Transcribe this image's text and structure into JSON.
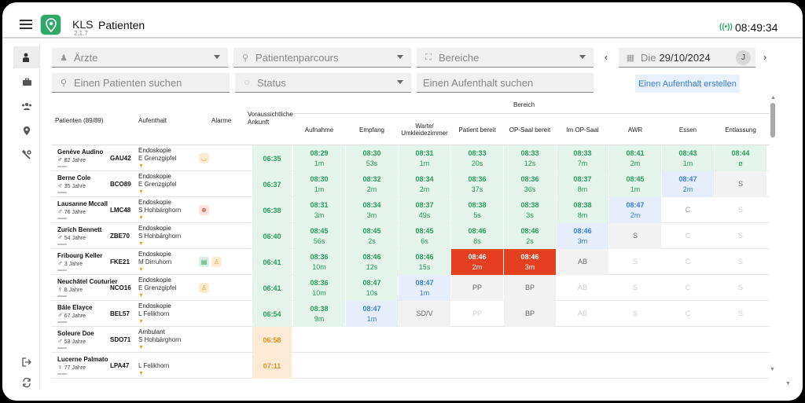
{
  "header": {
    "app_name": "KLS",
    "version": "2.1.7",
    "title": "Patienten",
    "time": "08:49:34"
  },
  "filters": {
    "aerzte_placeholder": "Ärzte",
    "parcours_placeholder": "Patientenparcours",
    "bereiche_placeholder": "Bereiche",
    "date_label": "Die",
    "date_value": "29/10/2024",
    "avatar": "J",
    "search_patient_placeholder": "Einen Patienten suchen",
    "status_placeholder": "Status",
    "search_stay_placeholder": "Einen Aufenthalt suchen",
    "create_stay_label": "Einen Aufenthalt erstellen"
  },
  "table": {
    "col_patients": "Patienten (89/89)",
    "col_aufenthalt": "Aufenthalt",
    "col_alarme": "Alarme",
    "col_ankunft": "Voraussichtliche Ankunft",
    "bereich_label": "Bereich",
    "stages": [
      "Aufnahme",
      "Empfang",
      "Warte/ Umkleidezimmer",
      "Patient bereit",
      "OP-Saal bereit",
      "Im OP-Saal",
      "AWR",
      "Essen",
      "Entlassung"
    ]
  },
  "patients": [
    {
      "name": "Genève Audino",
      "gender": "♂",
      "age": "82 Jahre",
      "code": "GAU42",
      "type": "Endoskopie",
      "doctor": "E Grenzgipfel",
      "ankunft": "06:35",
      "ank_style": "g",
      "alarms": [
        {
          "icon": "mask-icon",
          "glyph": "◡",
          "color": "#f0a020",
          "bg": "#fdebd6"
        }
      ],
      "cells": [
        {
          "s": "g",
          "t": "08:29",
          "d": "1m"
        },
        {
          "s": "g",
          "t": "08:30",
          "d": "53s"
        },
        {
          "s": "g",
          "t": "08:31",
          "d": "1m"
        },
        {
          "s": "g",
          "t": "08:33",
          "d": "20s"
        },
        {
          "s": "g",
          "t": "08:33",
          "d": "12s"
        },
        {
          "s": "g",
          "t": "08:33",
          "d": "7m"
        },
        {
          "s": "g",
          "t": "08:41",
          "d": "2m"
        },
        {
          "s": "g",
          "t": "08:43",
          "d": "1m"
        },
        {
          "s": "g",
          "t": "08:44",
          "d": "ø"
        }
      ]
    },
    {
      "name": "Berne Cole",
      "gender": "♂",
      "age": "35 Jahre",
      "code": "BCO89",
      "type": "Endoskopie",
      "doctor": "E Grenzgipfel",
      "ankunft": "06:37",
      "ank_style": "g",
      "alarms": [],
      "cells": [
        {
          "s": "g",
          "t": "08:30",
          "d": "1m"
        },
        {
          "s": "g",
          "t": "08:32",
          "d": "2m"
        },
        {
          "s": "g",
          "t": "08:34",
          "d": "2m"
        },
        {
          "s": "g",
          "t": "08:36",
          "d": "37s"
        },
        {
          "s": "g",
          "t": "08:36",
          "d": "36s"
        },
        {
          "s": "g",
          "t": "08:37",
          "d": "8m"
        },
        {
          "s": "g",
          "t": "08:45",
          "d": "1m"
        },
        {
          "s": "b",
          "t": "08:47",
          "d": "2m"
        },
        {
          "s": "gr",
          "t": "S",
          "d": ""
        }
      ]
    },
    {
      "name": "Lausanne Mccall",
      "gender": "♂",
      "age": "76 Jahre",
      "code": "LMC48",
      "type": "Endoskopie",
      "doctor": "S Hohbärghorn",
      "ankunft": "06:38",
      "ank_style": "g",
      "alarms": [
        {
          "icon": "target-icon",
          "glyph": "⊕",
          "color": "#e4401f",
          "bg": "#fde4de"
        }
      ],
      "cells": [
        {
          "s": "g",
          "t": "08:31",
          "d": "3m"
        },
        {
          "s": "g",
          "t": "08:34",
          "d": "3m"
        },
        {
          "s": "g",
          "t": "08:37",
          "d": "49s"
        },
        {
          "s": "g",
          "t": "08:38",
          "d": "5s"
        },
        {
          "s": "g",
          "t": "08:38",
          "d": "3s"
        },
        {
          "s": "g",
          "t": "08:38",
          "d": "8m"
        },
        {
          "s": "b",
          "t": "08:47",
          "d": "2m"
        },
        {
          "s": "st-mid",
          "t": "C",
          "d": ""
        },
        {
          "s": "st-light",
          "t": "S",
          "d": ""
        }
      ]
    },
    {
      "name": "Zurich Bennett",
      "gender": "♂",
      "age": "54 Jahre",
      "code": "ZBE70",
      "type": "Endoskopie",
      "doctor": "S Hohbärghorn",
      "ankunft": "06:40",
      "ank_style": "g",
      "alarms": [],
      "cells": [
        {
          "s": "g",
          "t": "08:45",
          "d": "56s"
        },
        {
          "s": "g",
          "t": "08:45",
          "d": "2s"
        },
        {
          "s": "g",
          "t": "08:45",
          "d": "6s"
        },
        {
          "s": "g",
          "t": "08:46",
          "d": "8s"
        },
        {
          "s": "g",
          "t": "08:46",
          "d": "2s"
        },
        {
          "s": "b",
          "t": "08:46",
          "d": "3m"
        },
        {
          "s": "gr",
          "t": "S",
          "d": ""
        },
        {
          "s": "st-light",
          "t": "C",
          "d": ""
        },
        {
          "s": "st-light",
          "t": "S",
          "d": ""
        }
      ]
    },
    {
      "name": "Fribourg Keller",
      "gender": "♂",
      "age": "3 Jahre",
      "code": "FKE21",
      "type": "Endoskopie",
      "doctor": "M Dirruhorn",
      "ankunft": "06:41",
      "ank_style": "g",
      "alarms": [
        {
          "icon": "document-icon",
          "glyph": "▤",
          "color": "#2a9a5c",
          "bg": "#d8f0e2"
        },
        {
          "icon": "person-icon",
          "glyph": "♙",
          "color": "#f0a020",
          "bg": "#fdebd6"
        }
      ],
      "cells": [
        {
          "s": "g",
          "t": "08:36",
          "d": "10m"
        },
        {
          "s": "g",
          "t": "08:46",
          "d": "12s"
        },
        {
          "s": "g",
          "t": "08:46",
          "d": "15s"
        },
        {
          "s": "r",
          "t": "08:46",
          "d": "2m"
        },
        {
          "s": "r",
          "t": "08:46",
          "d": "3m"
        },
        {
          "s": "gr",
          "t": "AB",
          "d": ""
        },
        {
          "s": "st-light",
          "t": "S",
          "d": ""
        },
        {
          "s": "st-light",
          "t": "C",
          "d": ""
        },
        {
          "s": "st-light",
          "t": "S",
          "d": ""
        }
      ]
    },
    {
      "name": "Neuchâtel Couturier",
      "gender": "♀",
      "age": "8 Jahre",
      "code": "NCO16",
      "type": "Endoskopie",
      "doctor": "E Grenzgipfel",
      "ankunft": "06:41",
      "ank_style": "g",
      "alarms": [
        {
          "icon": "person-icon",
          "glyph": "♙",
          "color": "#f0a020",
          "bg": "#fdebd6"
        }
      ],
      "cells": [
        {
          "s": "g",
          "t": "08:36",
          "d": "10m"
        },
        {
          "s": "g",
          "t": "08:47",
          "d": "10s"
        },
        {
          "s": "b",
          "t": "08:47",
          "d": "1m"
        },
        {
          "s": "gr",
          "t": "PP",
          "d": ""
        },
        {
          "s": "gr",
          "t": "BP",
          "d": ""
        },
        {
          "s": "st-light",
          "t": "AB",
          "d": ""
        },
        {
          "s": "st-light",
          "t": "S",
          "d": ""
        },
        {
          "s": "st-light",
          "t": "C",
          "d": ""
        },
        {
          "s": "st-light",
          "t": "S",
          "d": ""
        }
      ]
    },
    {
      "name": "Bâle Elayce",
      "gender": "♂",
      "age": "67 Jahre",
      "code": "BEL57",
      "type": "Endoskopie",
      "doctor": "L Felikhorn",
      "ankunft": "06:54",
      "ank_style": "g",
      "alarms": [],
      "cells": [
        {
          "s": "g",
          "t": "08:38",
          "d": "9m"
        },
        {
          "s": "b",
          "t": "08:47",
          "d": "1m"
        },
        {
          "s": "gr",
          "t": "SD/V",
          "d": ""
        },
        {
          "s": "st-light",
          "t": "PP",
          "d": ""
        },
        {
          "s": "gr",
          "t": "BP",
          "d": ""
        },
        {
          "s": "st-light",
          "t": "AB",
          "d": ""
        },
        {
          "s": "st-light",
          "t": "S",
          "d": ""
        },
        {
          "s": "st-light",
          "t": "C",
          "d": ""
        },
        {
          "s": "st-light",
          "t": "S",
          "d": ""
        }
      ]
    },
    {
      "name": "Soleure Doe",
      "gender": "♂",
      "age": "53 Jahre",
      "code": "SDO71",
      "type": "Ambulant",
      "doctor": "S Hohbärghorn",
      "ankunft": "06:58",
      "ank_style": "o",
      "alarms": [],
      "cells": []
    },
    {
      "name": "Lucerne Palmato",
      "gender": "♀",
      "age": "77 Jahre",
      "code": "LPA47",
      "type": "",
      "doctor": "L Felikhorn",
      "ankunft": "07:11",
      "ank_style": "o",
      "alarms": [],
      "cells": []
    }
  ]
}
